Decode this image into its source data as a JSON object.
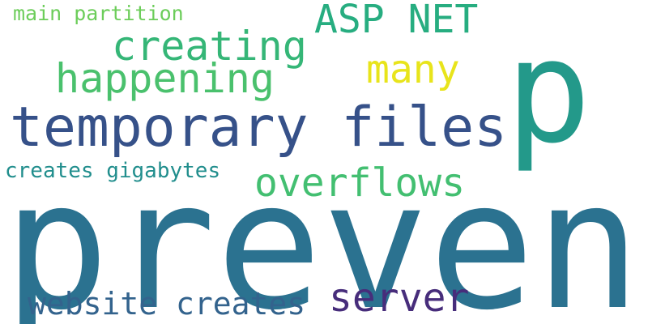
{
  "words": [
    {
      "id": "w-prevent",
      "text": "prevent",
      "color": "#2b7290"
    },
    {
      "id": "w-p",
      "text": "p",
      "color": "#23998a"
    },
    {
      "id": "w-temporary",
      "text": "temporary files",
      "color": "#365189"
    },
    {
      "id": "w-overflows",
      "text": "overflows",
      "color": "#43bf71"
    },
    {
      "id": "w-asp",
      "text": "ASP NET",
      "color": "#27ad80"
    },
    {
      "id": "w-creating",
      "text": "creating",
      "color": "#35b677"
    },
    {
      "id": "w-happening",
      "text": "happening",
      "color": "#4ac16d"
    },
    {
      "id": "w-many",
      "text": "many",
      "color": "#e8e41b"
    },
    {
      "id": "w-server",
      "text": "server",
      "color": "#472d7b"
    },
    {
      "id": "w-website",
      "text": "website creates",
      "color": "#33638d"
    },
    {
      "id": "w-gigabytes",
      "text": "creates gigabytes",
      "color": "#218e8d"
    },
    {
      "id": "w-main",
      "text": "main partition",
      "color": "#6ccd5a"
    }
  ]
}
